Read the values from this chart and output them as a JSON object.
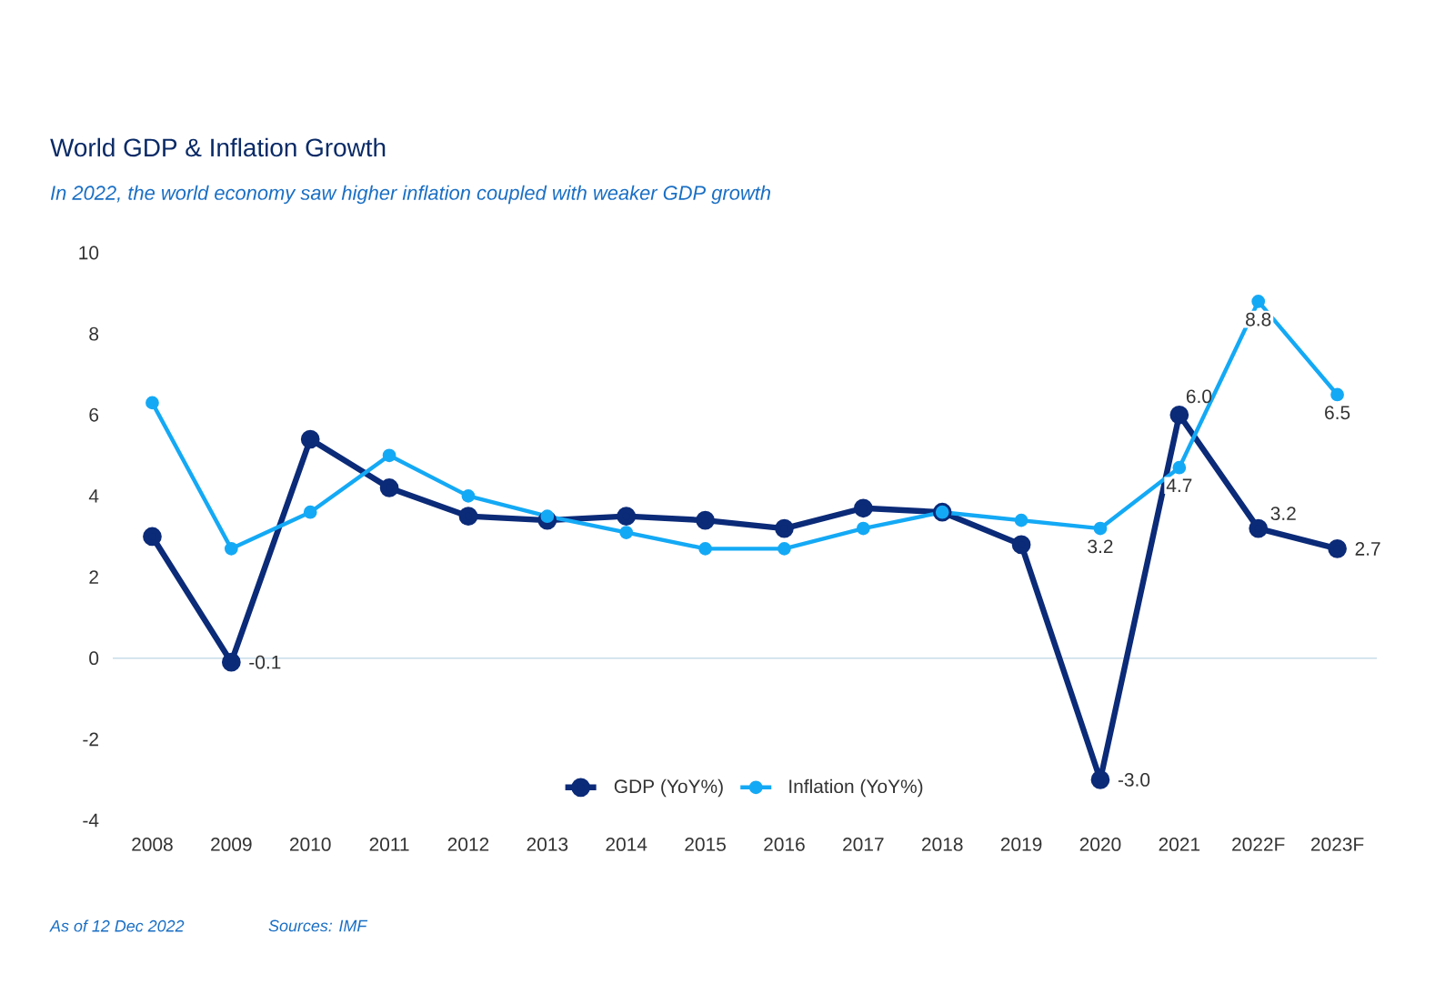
{
  "chart_data": {
    "type": "line",
    "title": "World GDP & Inflation Growth",
    "subtitle": "In 2022, the world economy saw higher inflation coupled with weaker GDP growth",
    "categories": [
      "2008",
      "2009",
      "2010",
      "2011",
      "2012",
      "2013",
      "2014",
      "2015",
      "2016",
      "2017",
      "2018",
      "2019",
      "2020",
      "2021",
      "2022F",
      "2023F"
    ],
    "series": [
      {
        "name": "GDP (YoY%)",
        "color": "#0b2a78",
        "values": [
          3.0,
          -0.1,
          5.4,
          4.2,
          3.5,
          3.4,
          3.5,
          3.4,
          3.2,
          3.7,
          3.6,
          2.8,
          -3.0,
          6.0,
          3.2,
          2.7
        ],
        "value_labels": [
          null,
          "-0.1",
          null,
          null,
          null,
          null,
          null,
          null,
          null,
          null,
          null,
          null,
          "-3.0",
          "6.0",
          "3.2",
          "2.7"
        ]
      },
      {
        "name": "Inflation (YoY%)",
        "color": "#14a9f5",
        "values": [
          6.3,
          2.7,
          3.6,
          5.0,
          4.0,
          3.5,
          3.1,
          2.7,
          2.7,
          3.2,
          3.6,
          3.4,
          3.2,
          4.7,
          8.8,
          6.5
        ],
        "value_labels": [
          null,
          null,
          null,
          null,
          null,
          null,
          null,
          null,
          null,
          null,
          null,
          null,
          "3.2",
          "4.7",
          "8.8",
          "6.5"
        ]
      }
    ],
    "ylim": [
      -4,
      10
    ],
    "yticks": [
      -4,
      -2,
      0,
      2,
      4,
      6,
      8,
      10
    ],
    "ref_lines": [
      {
        "axis": "y",
        "value": 0,
        "color": "#c8dcea"
      }
    ],
    "legend": "bottom",
    "marker": "circle",
    "line_style": "solid",
    "grid": false,
    "annotations": [
      "As of 12 Dec 2022",
      "Sources: IMF"
    ]
  }
}
